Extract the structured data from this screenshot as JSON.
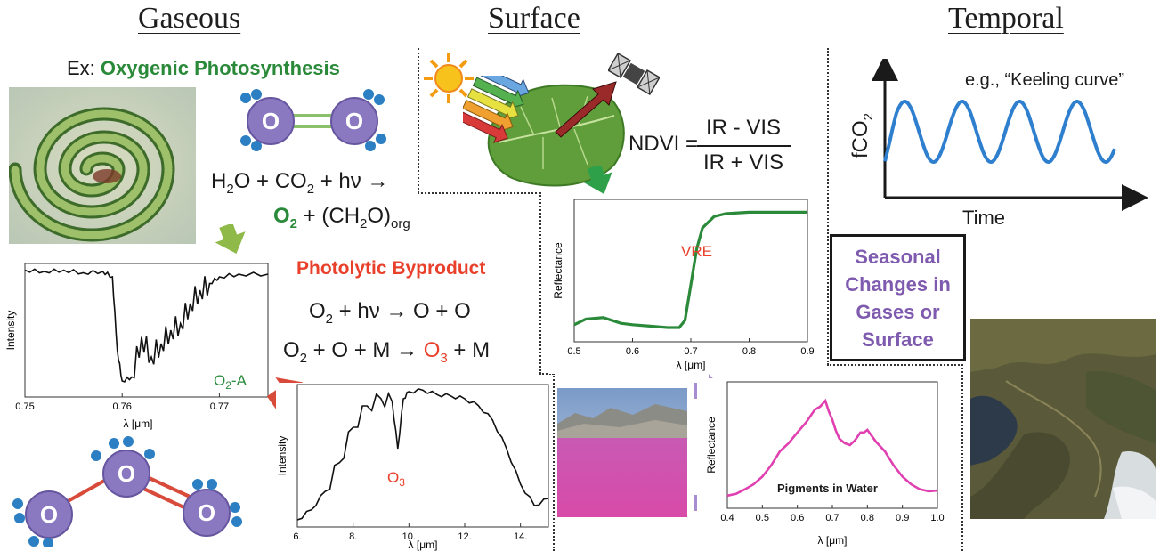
{
  "headings": {
    "gaseous": "Gaseous",
    "surface": "Surface",
    "temporal": "Temporal"
  },
  "gaseous": {
    "example_prefix": "Ex:",
    "example_title": "Oxygenic Photosynthesis",
    "molecule_atom": "O",
    "reaction1": {
      "h2o": "H",
      "h2o_sub": "2",
      "o_after": "O + CO",
      "co2_sub": "2",
      "rest": " + hν →"
    },
    "reaction2": {
      "o2": "O",
      "o2_sub": "2",
      "rest": " + (CH",
      "ch2o_sub": "2",
      "o_close": "O)",
      "org_sub": "org"
    },
    "photolytic_title": "Photolytic Byproduct",
    "reaction3": {
      "o2": "O",
      "o2_sub": "2",
      "rest": " + hν → O + O"
    },
    "reaction4": {
      "o2": "O",
      "o2_sub": "2",
      "mid": " + O + M → ",
      "o3": "O",
      "o3_sub": "3",
      "end": " + M"
    }
  },
  "surface": {
    "ndvi_label": "NDVI =",
    "ndvi_numerator": "IR - VIS",
    "ndvi_denominator": "IR + VIS"
  },
  "temporal": {
    "example": "e.g., “Keeling curve”",
    "ylabel_main": "fCO",
    "ylabel_sub": "2",
    "xlabel": "Time",
    "seasonal_box": "Seasonal Changes in Gases or Surface"
  },
  "colors": {
    "green": "#2a8a3a",
    "red": "#e8402a",
    "purple": "#7f5bb0",
    "blue_curve": "#2f7fcf",
    "vre_curve": "#2a8a3a",
    "pigment_curve": "#e040b0",
    "molecule": "#8a78c0",
    "bead": "#2b7fc2"
  },
  "chart_data": [
    {
      "type": "line",
      "name_ref": "o2a-spectrum",
      "xlabel": "λ [μm]",
      "ylabel": "Intensity",
      "xlim": [
        0.75,
        0.775
      ],
      "xticks": [
        "0.75",
        "0.76",
        "0.77"
      ],
      "annotation": "O2-A",
      "annotation_main": "O",
      "annotation_sub": "2",
      "annotation_tail": "-A",
      "x": [
        0.75,
        0.752,
        0.754,
        0.756,
        0.758,
        0.759,
        0.7595,
        0.76,
        0.761,
        0.762,
        0.763,
        0.764,
        0.765,
        0.766,
        0.767,
        0.768,
        0.769,
        0.77,
        0.772,
        0.775
      ],
      "y": [
        0.95,
        0.94,
        0.95,
        0.93,
        0.94,
        0.9,
        0.35,
        0.12,
        0.15,
        0.45,
        0.3,
        0.4,
        0.5,
        0.55,
        0.7,
        0.8,
        0.85,
        0.9,
        0.92,
        0.92
      ]
    },
    {
      "type": "line",
      "name_ref": "o3-spectrum",
      "xlabel": "λ [μm]",
      "ylabel": "Intensity",
      "xlim": [
        6,
        15
      ],
      "xticks": [
        "6.",
        "8.",
        "10.",
        "12.",
        "14."
      ],
      "annotation_main": "O",
      "annotation_sub": "3",
      "x": [
        6.0,
        6.5,
        7.0,
        7.5,
        8.0,
        8.5,
        9.0,
        9.4,
        9.6,
        9.8,
        10.0,
        10.5,
        11.0,
        11.5,
        12.0,
        12.5,
        13.0,
        13.5,
        14.0,
        14.5,
        15.0
      ],
      "y": [
        0.05,
        0.12,
        0.25,
        0.45,
        0.7,
        0.85,
        0.9,
        0.88,
        0.55,
        0.9,
        0.95,
        0.96,
        0.93,
        0.92,
        0.9,
        0.85,
        0.75,
        0.55,
        0.3,
        0.15,
        0.2
      ]
    },
    {
      "type": "line",
      "name_ref": "vre-reflectance",
      "xlabel": "λ [μm]",
      "ylabel": "Reflectance",
      "xlim": [
        0.5,
        0.9
      ],
      "xticks": [
        "0.5",
        "0.6",
        "0.7",
        "0.8",
        "0.9"
      ],
      "annotation": "VRE",
      "x": [
        0.5,
        0.52,
        0.55,
        0.58,
        0.6,
        0.63,
        0.66,
        0.68,
        0.69,
        0.7,
        0.71,
        0.72,
        0.74,
        0.76,
        0.8,
        0.85,
        0.9
      ],
      "y": [
        0.12,
        0.16,
        0.17,
        0.13,
        0.12,
        0.11,
        0.1,
        0.1,
        0.15,
        0.4,
        0.65,
        0.8,
        0.88,
        0.9,
        0.91,
        0.91,
        0.91
      ]
    },
    {
      "type": "line",
      "name_ref": "pigments-reflectance",
      "xlabel": "λ [μm]",
      "ylabel": "Reflectance",
      "xlim": [
        0.4,
        1.0
      ],
      "xticks": [
        "0.4",
        "0.5",
        "0.6",
        "0.7",
        "0.8",
        "0.9",
        "1.0"
      ],
      "annotation": "Pigments in Water",
      "x": [
        0.4,
        0.45,
        0.5,
        0.55,
        0.6,
        0.65,
        0.68,
        0.7,
        0.72,
        0.75,
        0.78,
        0.8,
        0.85,
        0.9,
        0.95,
        1.0
      ],
      "y": [
        0.1,
        0.15,
        0.25,
        0.45,
        0.6,
        0.78,
        0.85,
        0.7,
        0.55,
        0.5,
        0.6,
        0.62,
        0.45,
        0.25,
        0.15,
        0.14
      ]
    },
    {
      "type": "line",
      "name_ref": "keeling-curve",
      "xlabel": "Time",
      "ylabel": "fCO2",
      "periods": 4
    }
  ]
}
